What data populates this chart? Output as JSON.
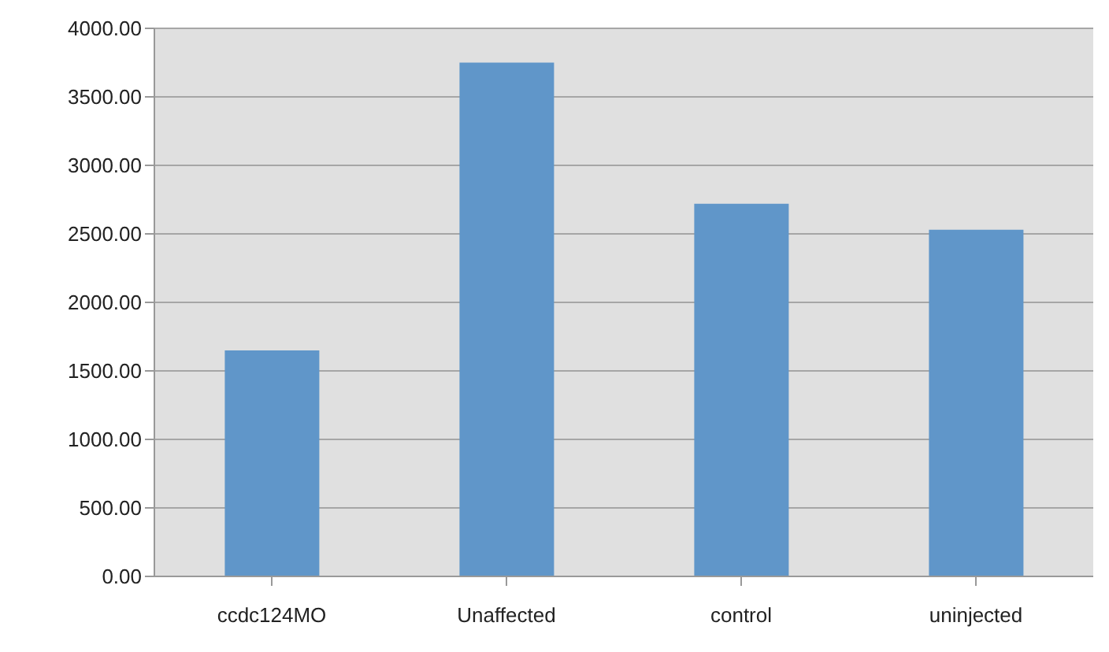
{
  "chart_data": {
    "type": "bar",
    "categories": [
      "ccdc124MO",
      "Unaffected",
      "control",
      "uninjected"
    ],
    "values": [
      1650,
      3750,
      2720,
      2530
    ],
    "color": "#6096c9",
    "ylim": [
      0,
      4000
    ],
    "yticks": [
      {
        "value": 0,
        "label": "0.00"
      },
      {
        "value": 500,
        "label": "500.00"
      },
      {
        "value": 1000,
        "label": "1000.00"
      },
      {
        "value": 1500,
        "label": "1500.00"
      },
      {
        "value": 2000,
        "label": "2000.00"
      },
      {
        "value": 2500,
        "label": "2500.00"
      },
      {
        "value": 3000,
        "label": "3000.00"
      },
      {
        "value": 3500,
        "label": "3500.00"
      },
      {
        "value": 4000,
        "label": "4000.00"
      }
    ],
    "grid": "y"
  }
}
